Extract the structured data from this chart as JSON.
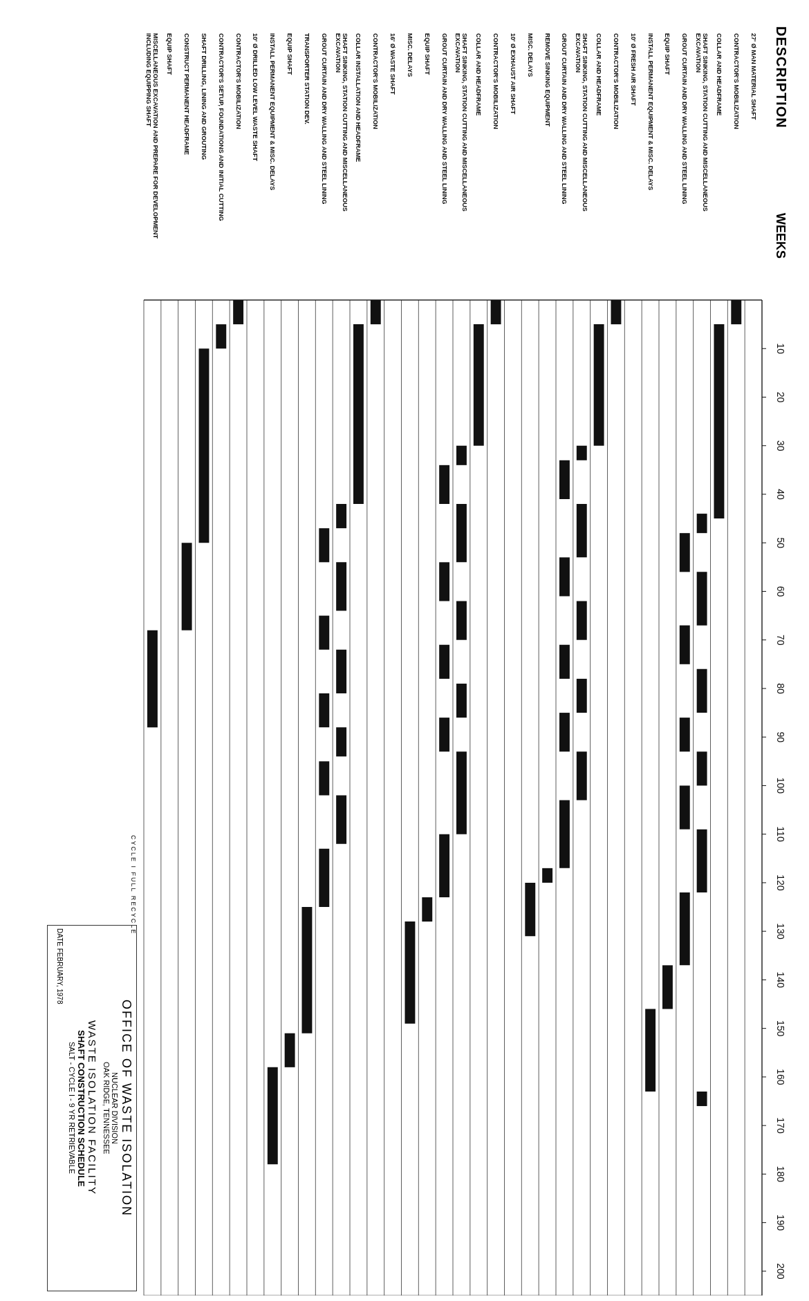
{
  "chart_data": {
    "type": "bar",
    "orientation": "vertical",
    "title": "WASTE ISOLATION FACILITY",
    "subtitle": "SHAFT CONSTRUCTION SCHEDULE",
    "ylabel": "WEEKS",
    "categories": [
      "MISCELLANEOUS EXCAVATION AND PREPARE FOR DEVELOPMENT INCLUDING EQUIPPING SHAFT",
      "EQUIP SHAFT",
      "CONSTRUCT PERMANENT HEADFRAME",
      "SHAFT DRILLING, LINING AND GROUTING",
      "CONTRACTOR'S SETUP, FOUNDATIONS AND INITIAL CUTTING",
      "CONTRACTOR'S MOBILIZATION",
      "10' Ø DRILLED LOW LEVEL WASTE SHAFT",
      "INSTALL PERMANENT EQUIPMENT & MISC. DELAYS",
      "EQUIP SHAFT",
      "TRANSPORTER STATION DEV.",
      "GROUT CURTAIN AND DRY WALLING AND STEEL LINING",
      "SHAFT SINKING, STATION CUTTING AND MISCELLANEOUS EXCAVATION",
      "COLLAR INSTALLATION AND HEADFRAME",
      "CONTRACTOR'S MOBILIZATION",
      "16' Ø WASTE SHAFT",
      "MISC. DELAYS",
      "EQUIP SHAFT",
      "GROUT CURTAIN AND DRY WALLING AND STEEL LINING",
      "SHAFT SINKING, STATION CUTTING AND MISCELLANEOUS EXCAVATION",
      "COLLAR AND HEADFRAME",
      "CONTRACTOR'S MOBILIZATION",
      "10' Ø EXHAUST AIR SHAFT",
      "MISC. DELAYS",
      "REMOVE SINKING EQUIPMENT",
      "GROUT CURTAIN AND DRY WALLING AND STEEL LINING",
      "SHAFT SINKING, STATION CUTTING AND MISCELLANEOUS EXCAVATION",
      "COLLAR AND HEADFRAME",
      "CONTRACTOR'S MOBILIZATION",
      "10' Ø FRESH AIR SHAFT",
      "INSTALL PERMANENT EQUIPMENT & MISC. DELAYS",
      "EQUIP SHAFT",
      "GROUT CURTAIN AND DRY WALLING AND STEEL LINING",
      "SHAFT SINKING, STATION CUTTING AND MISCELLANEOUS EXCAVATION",
      "COLLAR AND HEADFRAME",
      "CONTRACTOR'S MOBILIZATION",
      "27' Ø MAN MATERIAL SHAFT"
    ],
    "series": [
      {
        "color": "#111111",
        "base": [
          68,
          null,
          50,
          10,
          5,
          0,
          null,
          158,
          151,
          125,
          47,
          42,
          5,
          0,
          null,
          128,
          123,
          34,
          30,
          5,
          0,
          null,
          120,
          117,
          33,
          30,
          5,
          0,
          null,
          146,
          137,
          48,
          44,
          5,
          0,
          null
        ],
        "values": [
          20,
          null,
          18,
          40,
          5,
          5,
          null,
          20,
          7,
          26,
          7,
          5,
          37,
          5,
          null,
          21,
          5,
          8,
          4,
          25,
          5,
          null,
          11,
          3,
          8,
          3,
          25,
          5,
          null,
          17,
          9,
          8,
          4,
          40,
          5,
          null
        ]
      },
      {
        "color": "#111111",
        "base": [
          null,
          null,
          null,
          null,
          null,
          null,
          null,
          null,
          null,
          null,
          65,
          54,
          null,
          null,
          null,
          null,
          null,
          54,
          42,
          null,
          null,
          null,
          null,
          null,
          53,
          42,
          null,
          null,
          null,
          null,
          null,
          67,
          56,
          null,
          null,
          null
        ],
        "values": [
          null,
          null,
          null,
          null,
          null,
          null,
          null,
          null,
          null,
          null,
          7,
          10,
          null,
          null,
          null,
          null,
          null,
          8,
          12,
          null,
          null,
          null,
          null,
          null,
          8,
          11,
          null,
          null,
          null,
          null,
          null,
          8,
          11,
          null,
          null,
          null
        ]
      },
      {
        "color": "#111111",
        "base": [
          null,
          null,
          null,
          null,
          null,
          null,
          null,
          null,
          null,
          null,
          81,
          72,
          null,
          null,
          null,
          null,
          null,
          71,
          62,
          null,
          null,
          null,
          null,
          null,
          71,
          62,
          null,
          null,
          null,
          null,
          null,
          86,
          76,
          null,
          null,
          null
        ],
        "values": [
          null,
          null,
          null,
          null,
          null,
          null,
          null,
          null,
          null,
          null,
          7,
          9,
          null,
          null,
          null,
          null,
          null,
          7,
          8,
          null,
          null,
          null,
          null,
          null,
          7,
          8,
          null,
          null,
          null,
          null,
          null,
          7,
          9,
          null,
          null,
          null
        ]
      },
      {
        "color": "#111111",
        "base": [
          null,
          null,
          null,
          null,
          null,
          null,
          null,
          null,
          null,
          null,
          95,
          88,
          null,
          null,
          null,
          null,
          null,
          86,
          79,
          null,
          null,
          null,
          null,
          null,
          85,
          78,
          null,
          null,
          null,
          null,
          null,
          100,
          93,
          null,
          null,
          null
        ],
        "values": [
          null,
          null,
          null,
          null,
          null,
          null,
          null,
          null,
          null,
          null,
          7,
          6,
          null,
          null,
          null,
          null,
          null,
          7,
          7,
          null,
          null,
          null,
          null,
          null,
          8,
          7,
          null,
          null,
          null,
          null,
          null,
          9,
          7,
          null,
          null,
          null
        ]
      },
      {
        "color": "#111111",
        "base": [
          null,
          null,
          null,
          null,
          null,
          null,
          null,
          null,
          null,
          null,
          113,
          102,
          null,
          null,
          null,
          null,
          null,
          110,
          93,
          null,
          null,
          null,
          null,
          null,
          103,
          93,
          null,
          null,
          null,
          null,
          null,
          122,
          109,
          null,
          null,
          null
        ],
        "values": [
          null,
          null,
          null,
          null,
          null,
          null,
          null,
          null,
          null,
          null,
          12,
          10,
          null,
          null,
          null,
          null,
          null,
          13,
          17,
          null,
          null,
          null,
          null,
          null,
          14,
          10,
          null,
          null,
          null,
          null,
          null,
          15,
          13,
          null,
          null,
          null
        ]
      },
      {
        "color": "#111111",
        "base": [
          null,
          null,
          null,
          null,
          null,
          null,
          null,
          null,
          null,
          null,
          null,
          null,
          null,
          null,
          null,
          null,
          null,
          null,
          null,
          null,
          null,
          null,
          null,
          null,
          null,
          null,
          null,
          null,
          null,
          null,
          null,
          null,
          163,
          null,
          null,
          null
        ],
        "values": [
          null,
          null,
          null,
          null,
          null,
          null,
          null,
          null,
          null,
          null,
          null,
          null,
          null,
          null,
          null,
          null,
          null,
          null,
          null,
          null,
          null,
          null,
          null,
          null,
          null,
          null,
          null,
          null,
          null,
          null,
          null,
          null,
          3,
          null,
          null,
          null
        ]
      }
    ],
    "ylim": [
      205,
      0
    ],
    "yticks": [
      10,
      20,
      30,
      40,
      50,
      60,
      70,
      80,
      90,
      100,
      110,
      120,
      130,
      140,
      150,
      160,
      170,
      180,
      190,
      200
    ],
    "grid": true,
    "annotations": [
      "OFFICE OF WASTE ISOLATION",
      "NUCLEAR DIVISION",
      "OAK RIDGE, TENNESSEE",
      "SALT - CYCLE I - 9 YR RETRIEVABLE",
      "DATE FEBRUARY, 1978",
      "CYCLE I FULL RECYCLE",
      "DESCRIPTION"
    ]
  }
}
